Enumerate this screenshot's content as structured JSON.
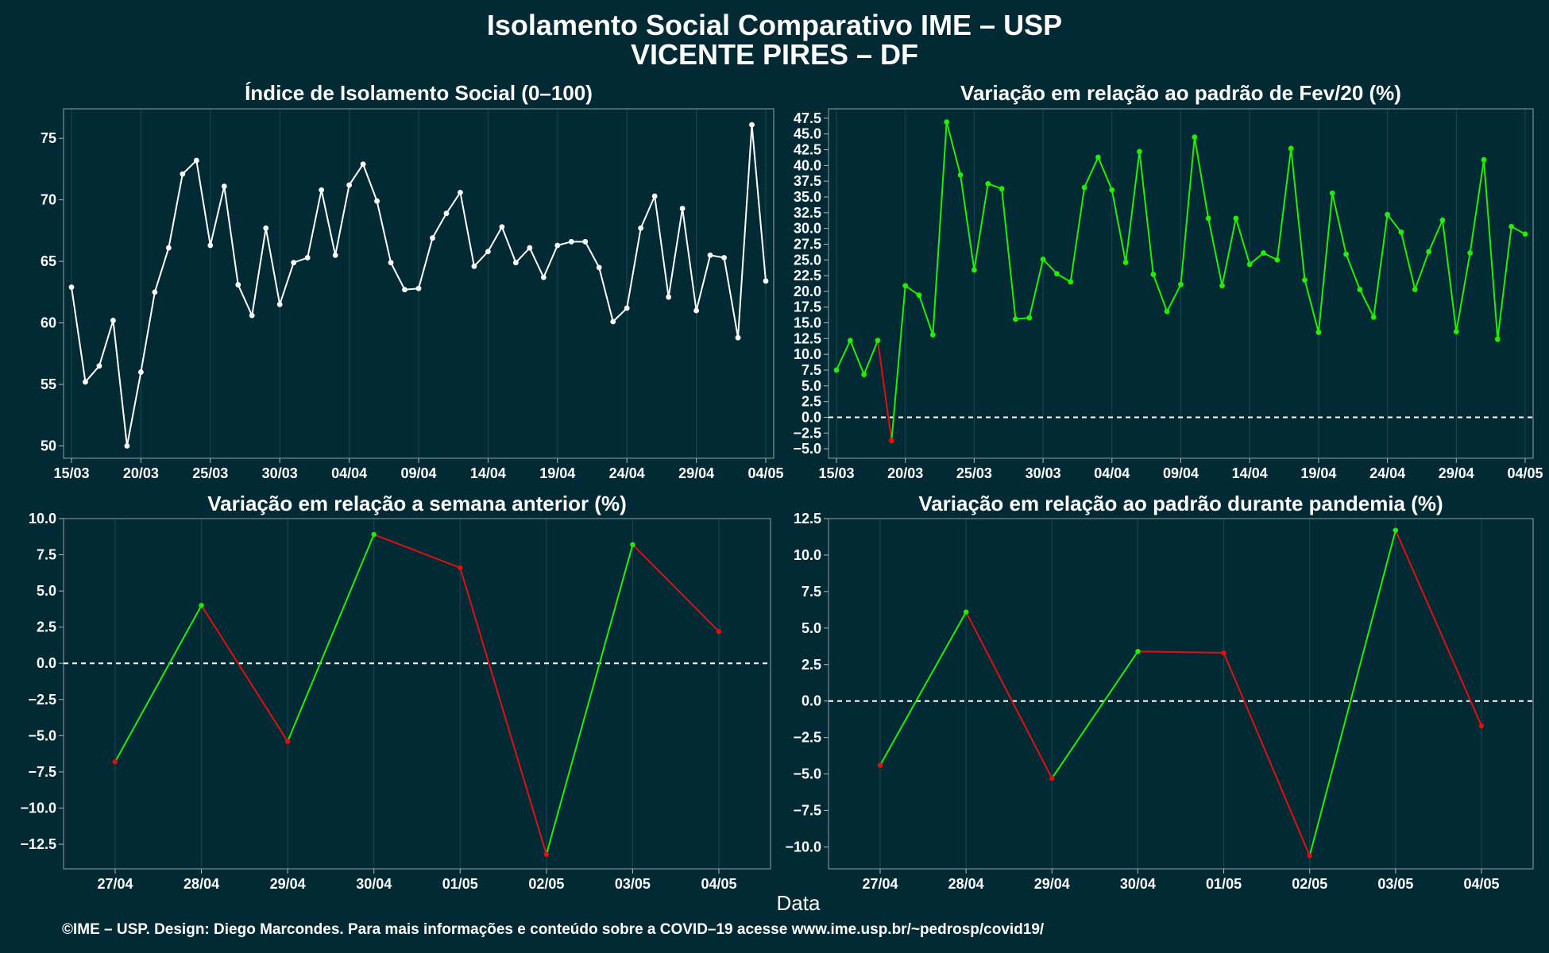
{
  "title": "Isolamento Social Comparativo IME – USP",
  "subtitle": "VICENTE PIRES – DF",
  "xlabel": "Data",
  "footer": "©IME – USP. Design: Diego Marcondes. Para mais informações e conteúdo sobre a COVID–19 acesse www.ime.usp.br/~pedrosp/covid19/",
  "colors": {
    "background": "#022a35",
    "line_main": "#ffffff",
    "positive": "#22ee00",
    "negative": "#e01010",
    "grid": "#17414b",
    "zero_line": "#ffffff"
  },
  "chart_data": [
    {
      "type": "line",
      "title": "Índice de Isolamento Social (0–100)",
      "x": [
        "15/03",
        "16/03",
        "17/03",
        "18/03",
        "19/03",
        "20/03",
        "21/03",
        "22/03",
        "23/03",
        "24/03",
        "25/03",
        "26/03",
        "27/03",
        "28/03",
        "29/03",
        "30/03",
        "31/03",
        "01/04",
        "02/04",
        "03/04",
        "04/04",
        "05/04",
        "06/04",
        "07/04",
        "08/04",
        "09/04",
        "10/04",
        "11/04",
        "12/04",
        "13/04",
        "14/04",
        "15/04",
        "16/04",
        "17/04",
        "18/04",
        "19/04",
        "20/04",
        "21/04",
        "22/04",
        "23/04",
        "24/04",
        "25/04",
        "26/04",
        "27/04",
        "28/04",
        "29/04",
        "30/04",
        "01/05",
        "02/05",
        "03/05",
        "04/05"
      ],
      "x_tick_labels": [
        "15/03",
        "20/03",
        "25/03",
        "30/03",
        "04/04",
        "09/04",
        "14/04",
        "19/04",
        "24/04",
        "29/04",
        "04/05"
      ],
      "y": [
        62.9,
        55.2,
        56.5,
        60.2,
        50.0,
        56.0,
        62.5,
        66.1,
        72.1,
        73.2,
        66.3,
        71.1,
        63.1,
        60.6,
        67.7,
        61.5,
        64.9,
        65.3,
        70.8,
        65.5,
        71.2,
        72.9,
        69.9,
        64.9,
        62.7,
        62.8,
        66.9,
        68.9,
        70.6,
        64.6,
        65.8,
        67.8,
        64.9,
        66.1,
        63.7,
        66.3,
        66.6,
        66.6,
        64.5,
        60.1,
        61.2,
        67.7,
        70.3,
        62.1,
        69.3,
        61.0,
        65.5,
        65.3,
        58.8,
        76.1,
        63.4
      ],
      "y_ticks": [
        "50",
        "55",
        "60",
        "65",
        "70",
        "75"
      ],
      "ylim": [
        49.0,
        77.4
      ],
      "color_mode": "single"
    },
    {
      "type": "line",
      "title": "Variação em relação ao padrão de Fev/20 (%)",
      "x": [
        "15/03",
        "16/03",
        "17/03",
        "18/03",
        "19/03",
        "20/03",
        "21/03",
        "22/03",
        "23/03",
        "24/03",
        "25/03",
        "26/03",
        "27/03",
        "28/03",
        "29/03",
        "30/03",
        "31/03",
        "01/04",
        "02/04",
        "03/04",
        "04/04",
        "05/04",
        "06/04",
        "07/04",
        "08/04",
        "09/04",
        "10/04",
        "11/04",
        "12/04",
        "13/04",
        "14/04",
        "15/04",
        "16/04",
        "17/04",
        "18/04",
        "19/04",
        "20/04",
        "21/04",
        "22/04",
        "23/04",
        "24/04",
        "25/04",
        "26/04",
        "27/04",
        "28/04",
        "29/04",
        "30/04",
        "01/05",
        "02/05",
        "03/05",
        "04/05"
      ],
      "x_tick_labels": [
        "15/03",
        "20/03",
        "25/03",
        "30/03",
        "04/04",
        "09/04",
        "14/04",
        "19/04",
        "24/04",
        "29/04",
        "04/05"
      ],
      "y": [
        7.5,
        12.2,
        6.8,
        12.2,
        -3.7,
        20.9,
        19.4,
        13.1,
        46.9,
        38.5,
        23.4,
        37.1,
        36.3,
        15.6,
        15.8,
        25.1,
        22.8,
        21.5,
        36.5,
        41.3,
        36.1,
        24.6,
        42.2,
        22.7,
        16.8,
        21.1,
        44.5,
        31.6,
        20.9,
        31.6,
        24.3,
        26.1,
        25.0,
        42.7,
        21.8,
        13.5,
        35.6,
        25.9,
        20.3,
        15.9,
        32.2,
        29.4,
        20.3,
        26.3,
        31.3,
        13.6,
        26.1,
        40.9,
        12.4,
        30.3,
        29.1
      ],
      "y_ticks": [
        "−5.0",
        "−2.5",
        "0.0",
        "2.5",
        "5.0",
        "7.5",
        "10.0",
        "12.5",
        "15.0",
        "17.5",
        "20.0",
        "22.5",
        "25.0",
        "27.5",
        "30.0",
        "32.5",
        "35.0",
        "37.5",
        "40.0",
        "42.5",
        "45.0",
        "47.5"
      ],
      "ylim": [
        -6.5,
        49.0
      ],
      "color_mode": "sign"
    },
    {
      "type": "line",
      "title": "Variação em relação a semana anterior (%)",
      "x": [
        "27/04",
        "28/04",
        "29/04",
        "30/04",
        "01/05",
        "02/05",
        "03/05",
        "04/05"
      ],
      "x_tick_labels": [
        "27/04",
        "28/04",
        "29/04",
        "30/04",
        "01/05",
        "02/05",
        "03/05",
        "04/05"
      ],
      "y": [
        -6.8,
        4.0,
        -5.4,
        8.9,
        6.6,
        -13.2,
        8.2,
        2.2
      ],
      "y_ticks": [
        "−12.5",
        "−10.0",
        "−7.5",
        "−5.0",
        "−2.5",
        "0.0",
        "2.5",
        "5.0",
        "7.5",
        "10.0"
      ],
      "ylim": [
        -14.2,
        10.0
      ],
      "color_mode": "direction"
    },
    {
      "type": "line",
      "title": "Variação em relação ao padrão durante pandemia (%)",
      "x": [
        "27/04",
        "28/04",
        "29/04",
        "30/04",
        "01/05",
        "02/05",
        "03/05",
        "04/05"
      ],
      "x_tick_labels": [
        "27/04",
        "28/04",
        "29/04",
        "30/04",
        "01/05",
        "02/05",
        "03/05",
        "04/05"
      ],
      "y": [
        -4.4,
        6.1,
        -5.3,
        3.4,
        3.3,
        -10.6,
        11.7,
        -1.7
      ],
      "y_ticks": [
        "−10.0",
        "−7.5",
        "−5.0",
        "−2.5",
        "0.0",
        "2.5",
        "5.0",
        "7.5",
        "10.0",
        "12.5"
      ],
      "ylim": [
        -11.5,
        12.5
      ],
      "color_mode": "direction"
    }
  ]
}
